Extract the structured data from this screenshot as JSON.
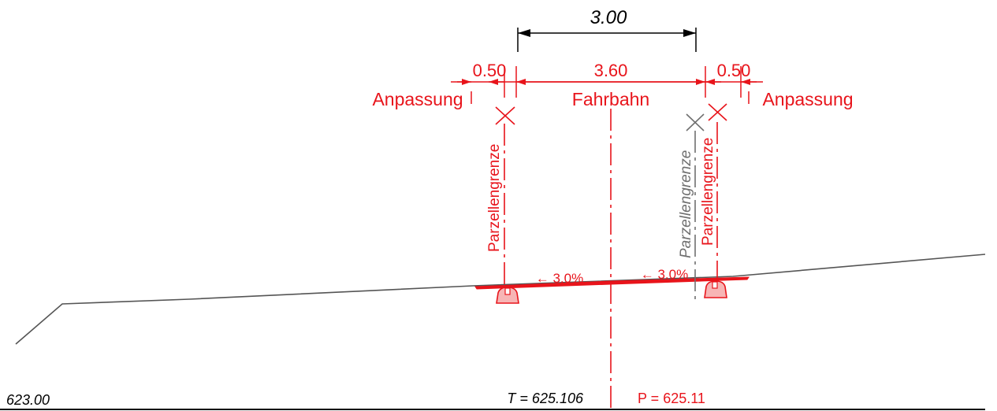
{
  "colors": {
    "design": "#e8141b",
    "existing": "#6f6f6f",
    "dimension_black": "#000000",
    "curb_fill": "#f7b5b5"
  },
  "dims": {
    "top_width": "3.00",
    "left_shoulder": "0.50",
    "lane_width": "3.60",
    "right_shoulder": "0.50"
  },
  "labels": {
    "left_anpassung": "Anpassung",
    "fahrbahn": "Fahrbahn",
    "right_anpassung": "Anpassung",
    "parcel_left": "Parzellengrenze",
    "parcel_right_existing": "Parzellengrenze",
    "parcel_right_design": "Parzellengrenze"
  },
  "slopes": {
    "left": "← 3.0%",
    "right": "← 3.0%"
  },
  "footer": {
    "datum": "623.00",
    "terrain_height": "T = 625.106",
    "project_height": "P = 625.11"
  }
}
